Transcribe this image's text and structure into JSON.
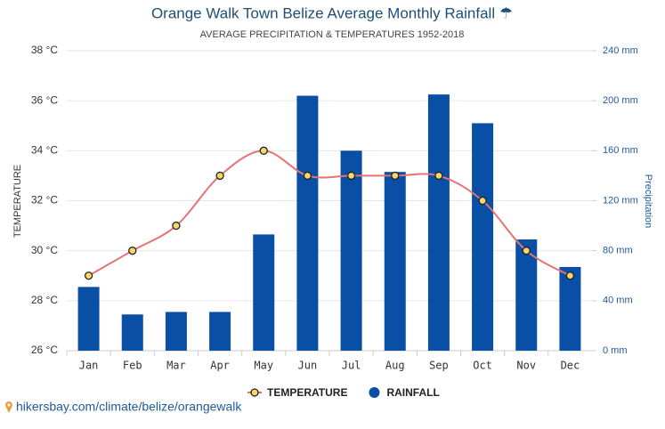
{
  "chart_data": {
    "type": "combo",
    "title": "Orange Walk Town Belize Average Monthly Rainfall ☂",
    "subtitle": "AVERAGE PRECIPITATION & TEMPERATURES 1952-2018",
    "y_label": "TEMPERATURE",
    "y2_label": "Precipitation",
    "categories": [
      "Jan",
      "Feb",
      "Mar",
      "Apr",
      "May",
      "Jun",
      "Jul",
      "Aug",
      "Sep",
      "Oct",
      "Nov",
      "Dec"
    ],
    "series": [
      {
        "name": "TEMPERATURE",
        "type": "line",
        "color": "#e57373",
        "marker_color": "#f5d76e",
        "values": [
          29,
          30,
          31,
          33,
          34,
          33,
          33,
          33,
          33,
          32,
          30,
          29
        ]
      },
      {
        "name": "RAINFALL",
        "type": "bar",
        "axis": "y2",
        "color": "#0a4fa6",
        "values": [
          51,
          29,
          31,
          31,
          93,
          204,
          160,
          143,
          205,
          182,
          89,
          67
        ]
      }
    ],
    "ylim": [
      26,
      38
    ],
    "yticks": [
      {
        "value": 26,
        "label": "26 °C"
      },
      {
        "value": 28,
        "label": "28 °C"
      },
      {
        "value": 30,
        "label": "30 °C"
      },
      {
        "value": 32,
        "label": "32 °C"
      },
      {
        "value": 34,
        "label": "34 °C"
      },
      {
        "value": 36,
        "label": "36 °C"
      },
      {
        "value": 38,
        "label": "38 °C"
      }
    ],
    "y2lim": [
      0,
      240
    ],
    "y2ticks": [
      {
        "value": 0,
        "label": "0 mm"
      },
      {
        "value": 40,
        "label": "40 mm"
      },
      {
        "value": 80,
        "label": "80 mm"
      },
      {
        "value": 120,
        "label": "120 mm"
      },
      {
        "value": 160,
        "label": "160 mm"
      },
      {
        "value": 200,
        "label": "200 mm"
      },
      {
        "value": 240,
        "label": "240 mm"
      }
    ],
    "grid": true,
    "legend": "bottom",
    "source": "hikersbay.com/climate/belize/orangewalk"
  }
}
